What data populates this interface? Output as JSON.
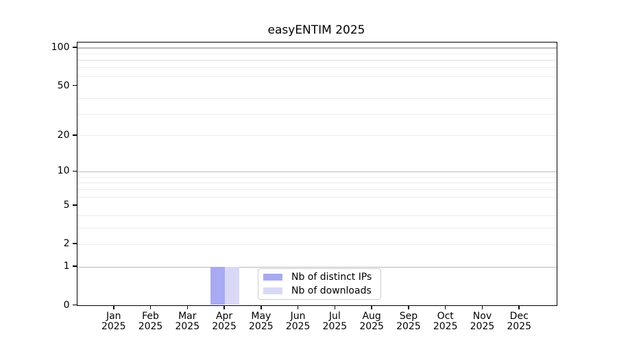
{
  "figure": {
    "background": "#ffffff"
  },
  "chart_data": {
    "type": "bar",
    "title": "easyENTIM 2025",
    "categories": [
      "Jan",
      "Feb",
      "Mar",
      "Apr",
      "May",
      "Jun",
      "Jul",
      "Aug",
      "Sep",
      "Oct",
      "Nov",
      "Dec"
    ],
    "x_year_label": "2025",
    "series": [
      {
        "name": "Nb of distinct IPs",
        "color": "#a9a9f4",
        "values": [
          0,
          0,
          0,
          1,
          0,
          0,
          0,
          0,
          0,
          0,
          0,
          0
        ]
      },
      {
        "name": "Nb of downloads",
        "color": "#d9d9f7",
        "values": [
          0,
          0,
          0,
          1,
          0,
          0,
          0,
          0,
          0,
          0,
          0,
          0
        ]
      }
    ],
    "xlabel": "",
    "ylabel": "",
    "y_axis": {
      "scale": "log10(1+x)",
      "tick_values": [
        0,
        1,
        2,
        5,
        10,
        20,
        50,
        100
      ],
      "major_grid_values": [
        1,
        10,
        100
      ],
      "minor_grid_values": [
        2,
        3,
        4,
        6,
        7,
        8,
        9,
        20,
        30,
        40,
        60,
        70,
        80,
        90
      ],
      "ylim": [
        0,
        111
      ]
    },
    "grid": "horizontal",
    "legend_position": "inside lower center",
    "colors": {
      "major_grid": "#b8b8b8",
      "minor_grid": "#ececec",
      "spine": "#000000",
      "text": "#000000",
      "legend_border": "#cccccc"
    }
  }
}
